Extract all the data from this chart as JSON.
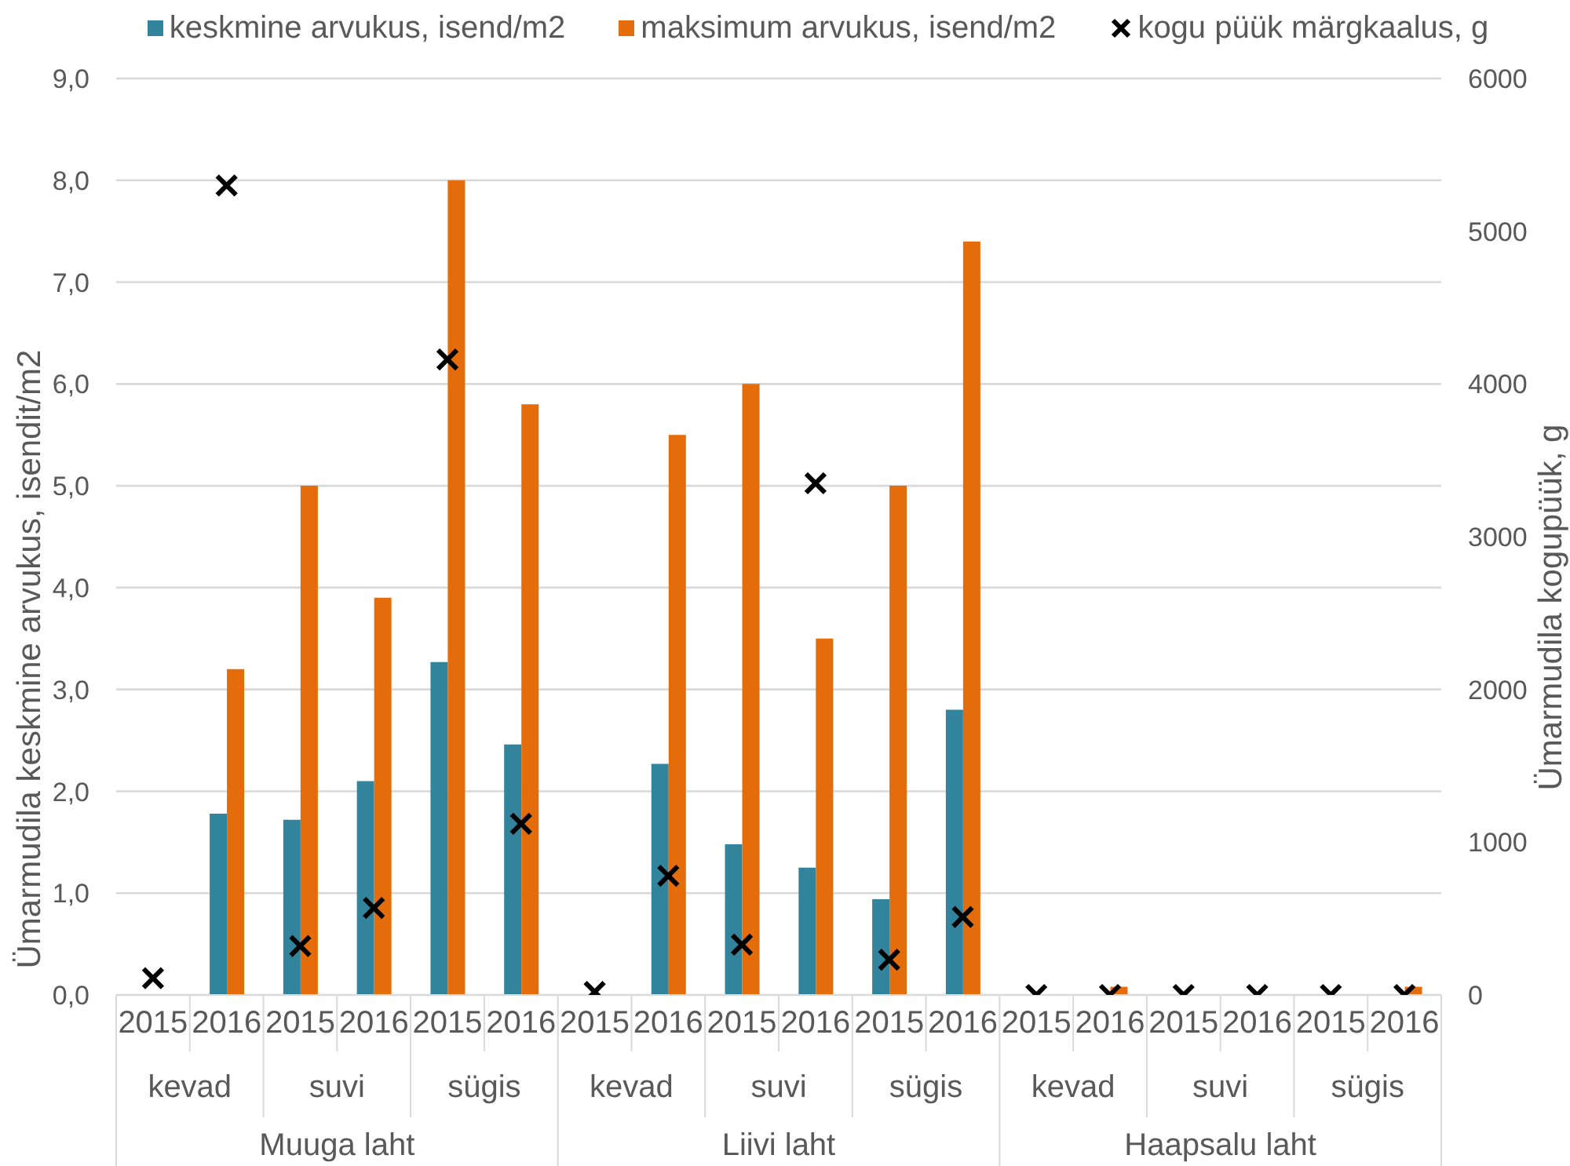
{
  "chart_data": {
    "type": "bar",
    "legend": "top",
    "grid": "y",
    "categories": [
      "2015",
      "2016",
      "2015",
      "2016",
      "2015",
      "2016",
      "2015",
      "2016",
      "2015",
      "2016",
      "2015",
      "2016",
      "2015",
      "2016",
      "2015",
      "2016",
      "2015",
      "2016"
    ],
    "series": [
      {
        "name": "keskmine arvukus, isend/m2",
        "color": "#31849b",
        "values": [
          0,
          1.78,
          1.72,
          2.1,
          3.27,
          2.46,
          0,
          2.27,
          1.48,
          1.25,
          0.94,
          2.8,
          0,
          0,
          0,
          0,
          0,
          0
        ]
      },
      {
        "name": "maksimum arvukus, isend/m2",
        "color": "#e46c0a",
        "values": [
          0,
          3.2,
          5.0,
          3.9,
          8.0,
          5.8,
          0,
          5.5,
          6.0,
          3.5,
          5.0,
          7.4,
          0,
          0.08,
          0,
          0,
          0,
          0.08
        ]
      },
      {
        "name": "kogu püük märgkaalus, g",
        "type": "scatter",
        "axis": "y2",
        "marker": "cross",
        "color": "#000000",
        "values": [
          110,
          5300,
          320,
          570,
          4160,
          1120,
          20,
          780,
          330,
          3350,
          230,
          510,
          0,
          0,
          0,
          0,
          0,
          0
        ]
      }
    ],
    "ylabel": "Ümarmudila keskmine arvukus, isendit/m2",
    "y2label": "Ümarmudila kogupüük, g",
    "ylim": [
      0,
      9
    ],
    "yticks": [
      {
        "value": 0,
        "label": "0,0"
      },
      {
        "value": 1,
        "label": "1,0"
      },
      {
        "value": 2,
        "label": "2,0"
      },
      {
        "value": 3,
        "label": "3,0"
      },
      {
        "value": 4,
        "label": "4,0"
      },
      {
        "value": 5,
        "label": "5,0"
      },
      {
        "value": 6,
        "label": "6,0"
      },
      {
        "value": 7,
        "label": "7,0"
      },
      {
        "value": 8,
        "label": "8,0"
      },
      {
        "value": 9,
        "label": "9,0"
      }
    ],
    "y2lim": [
      0,
      6000
    ],
    "y2ticks": [
      0,
      1000,
      2000,
      3000,
      4000,
      5000,
      6000
    ],
    "annotations": [
      "kevad",
      "suvi",
      "sügis",
      "kevad",
      "suvi",
      "sügis",
      "kevad",
      "suvi",
      "sügis",
      "Muuga laht",
      "Liivi laht",
      "Haapsalu laht"
    ]
  }
}
